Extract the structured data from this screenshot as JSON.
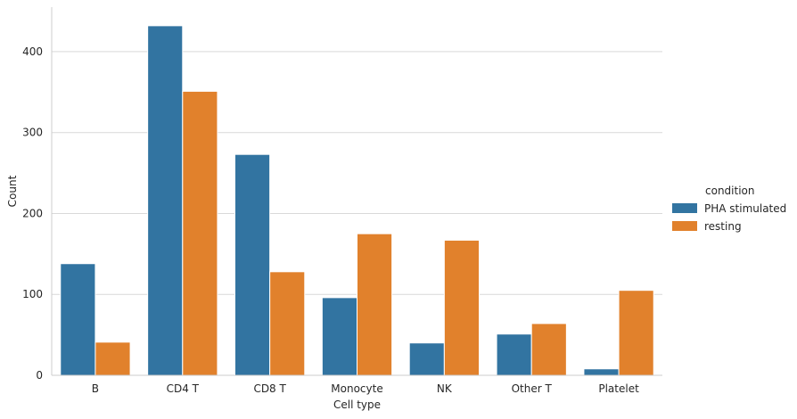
{
  "chart_data": {
    "type": "bar",
    "title": "",
    "xlabel": "Cell type",
    "ylabel": "Count",
    "categories": [
      "B",
      "CD4 T",
      "CD8 T",
      "Monocyte",
      "NK",
      "Other T",
      "Platelet"
    ],
    "series": [
      {
        "name": "PHA stimulated",
        "color": "#3274a1",
        "values": [
          138,
          432,
          273,
          96,
          40,
          51,
          8
        ]
      },
      {
        "name": "resting",
        "color": "#e1812c",
        "values": [
          41,
          351,
          128,
          175,
          167,
          64,
          105
        ]
      }
    ],
    "ylim": [
      0,
      455
    ],
    "yticks": [
      0,
      100,
      200,
      300,
      400
    ],
    "grid": "y",
    "legend": {
      "title": "condition",
      "placement": "right"
    }
  }
}
